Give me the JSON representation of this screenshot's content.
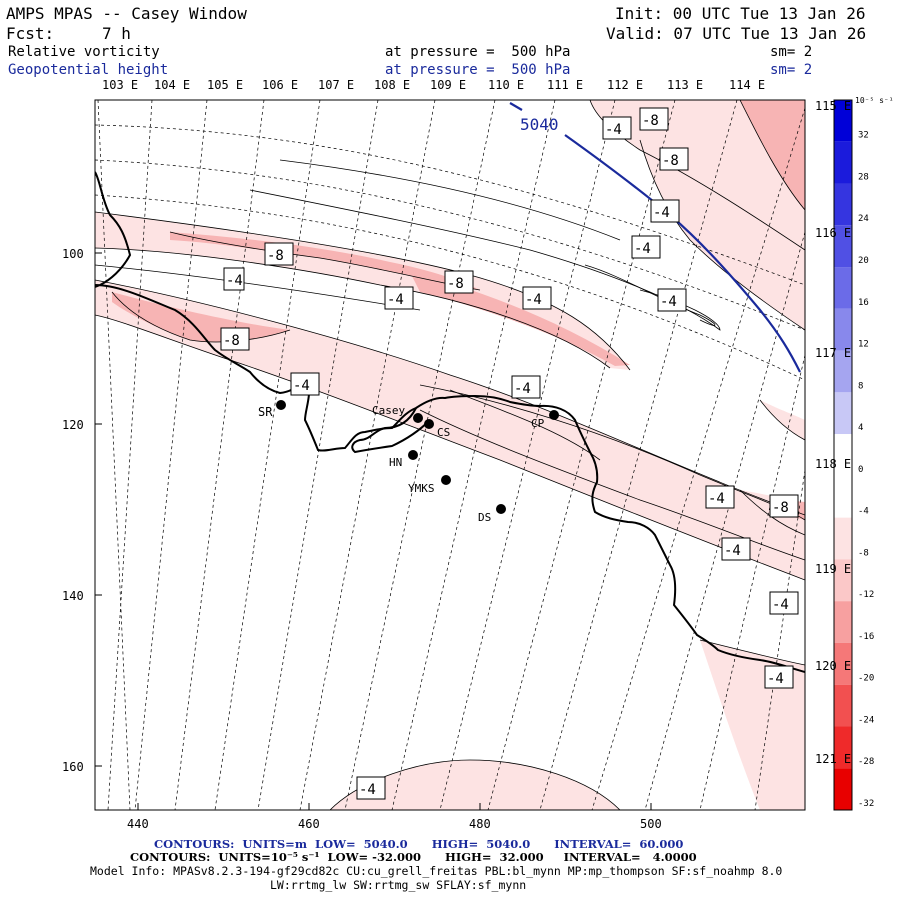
{
  "header": {
    "title": "AMPS MPAS -- Casey Window",
    "init": "Init: 00 UTC Tue 13 Jan 26",
    "fcst_label": "Fcst:",
    "fcst_value": "7 h",
    "valid": "Valid: 07 UTC Tue 13 Jan 26",
    "field1": "Relative vorticity",
    "field1_pressure": "at pressure =  500 hPa",
    "field1_sm": "sm= 2",
    "field2": "Geopotential height",
    "field2_pressure": "at pressure =  500 hPa",
    "field2_sm": "sm= 2"
  },
  "colors": {
    "height_contour": "#1a2a9c",
    "vort_fill_light": "#fde3e3",
    "vort_fill_mid": "#f7b4b4",
    "coast": "#000000"
  },
  "map": {
    "lon_labels_top": [
      "103 E",
      "104 E",
      "105 E",
      "106 E",
      "107 E",
      "108 E",
      "109 E",
      "110 E",
      "111 E",
      "112 E",
      "113 E",
      "114 E"
    ],
    "lon_labels_right": [
      "115 E",
      "116 E",
      "117 E",
      "118 E",
      "119 E",
      "120 E",
      "121 E"
    ],
    "x_ticks": [
      "440",
      "460",
      "480",
      "500"
    ],
    "y_ticks": [
      "100",
      "120",
      "140",
      "160"
    ],
    "height_label": "5040",
    "vort_labels": [
      "-4",
      "-8",
      "-4",
      "-8",
      "-8",
      "-4",
      "-8",
      "-4",
      "-8",
      "-4",
      "-4",
      "-4",
      "-4",
      "-4",
      "-4",
      "-8",
      "-4",
      "-4",
      "-4",
      "-4"
    ],
    "stations": [
      {
        "name": "SR"
      },
      {
        "name": "Casey"
      },
      {
        "name": "CS"
      },
      {
        "name": "CP"
      },
      {
        "name": "HN"
      },
      {
        "name": "YMKS"
      },
      {
        "name": "DS"
      }
    ]
  },
  "colorbar": {
    "unit": "10⁻⁵ s⁻¹",
    "labels": [
      "32",
      "28",
      "24",
      "20",
      "16",
      "12",
      "8",
      "4",
      "0",
      "-4",
      "-8",
      "-12",
      "-16",
      "-20",
      "-24",
      "-28",
      "-32"
    ],
    "colors": [
      "#0000d8",
      "#1b1bdc",
      "#3535e0",
      "#5050e4",
      "#6b6be8",
      "#8888ec",
      "#a5a5f0",
      "#c8c8f6",
      "#ffffff",
      "#ffffff",
      "#fde3e3",
      "#fbc8c8",
      "#f7a0a0",
      "#f57878",
      "#f25050",
      "#ef2a2a",
      "#e80000"
    ]
  },
  "footer": {
    "contours1": "CONTOURS:  UNITS=m  LOW=  5040.0      HIGH=  5040.0      INTERVAL=  60.000",
    "contours2": "CONTOURS:  UNITS=10⁻⁵ s⁻¹  LOW= -32.000      HIGH=  32.000     INTERVAL=   4.0000",
    "model_info": "Model Info: MPASv8.2.3-194-gf29cd82c CU:cu_grell_freitas PBL:bl_mynn MP:mp_thompson SF:sf_noahmp 8.0",
    "model_info2": "LW:rrtmg_lw SW:rrtmg_sw SFLAY:sf_mynn"
  }
}
